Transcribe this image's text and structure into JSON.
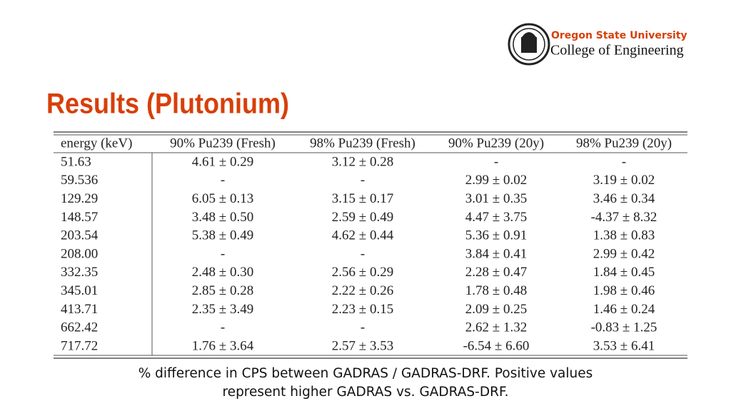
{
  "header": {
    "university": "Oregon State University",
    "college": "College of Engineering"
  },
  "title": "Results (Plutonium)",
  "table": {
    "columns": [
      "energy (keV)",
      "90% Pu239 (Fresh)",
      "98% Pu239 (Fresh)",
      "90% Pu239 (20y)",
      "98% Pu239 (20y)"
    ],
    "rows": [
      [
        "51.63",
        "4.61 ± 0.29",
        "3.12 ± 0.28",
        "-",
        "-"
      ],
      [
        "59.536",
        "-",
        "-",
        "2.99 ± 0.02",
        "3.19 ± 0.02"
      ],
      [
        "129.29",
        "6.05 ± 0.13",
        "3.15 ± 0.17",
        "3.01 ± 0.35",
        "3.46 ± 0.34"
      ],
      [
        "148.57",
        "3.48 ± 0.50",
        "2.59 ± 0.49",
        "4.47 ± 3.75",
        "-4.37 ± 8.32"
      ],
      [
        "203.54",
        "5.38 ± 0.49",
        "4.62 ± 0.44",
        "5.36 ± 0.91",
        "1.38 ± 0.83"
      ],
      [
        "208.00",
        "-",
        "-",
        "3.84 ± 0.41",
        "2.99 ± 0.42"
      ],
      [
        "332.35",
        "2.48 ± 0.30",
        "2.56 ± 0.29",
        "2.28 ± 0.47",
        "1.84 ± 0.45"
      ],
      [
        "345.01",
        "2.85 ± 0.28",
        "2.22 ± 0.26",
        "1.78 ± 0.48",
        "1.98 ± 0.46"
      ],
      [
        "413.71",
        "2.35 ± 3.49",
        "2.23 ± 0.15",
        "2.09 ± 0.25",
        "1.46 ± 0.24"
      ],
      [
        "662.42",
        "-",
        "-",
        "2.62 ± 1.32",
        "-0.83 ± 1.25"
      ],
      [
        "717.72",
        "1.76 ± 3.64",
        "2.57 ± 3.53",
        "-6.54 ± 6.60",
        "3.53 ± 6.41"
      ]
    ]
  },
  "caption": [
    "% difference in CPS between GADRAS / GADRAS-DRF. Positive values",
    "represent higher GADRAS vs. GADRAS-DRF."
  ]
}
